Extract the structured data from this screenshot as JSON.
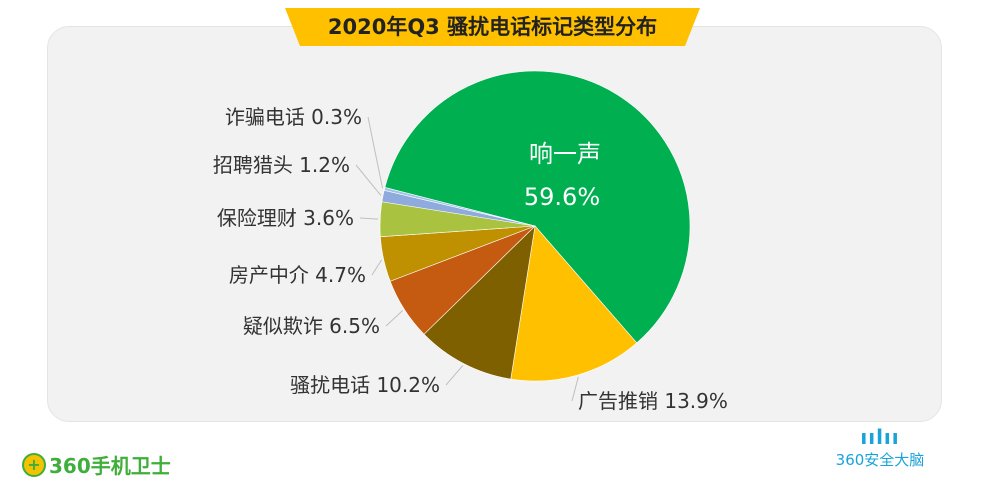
{
  "chart_data": {
    "type": "pie",
    "title": "2020年Q3 骚扰电话标记类型分布",
    "slices": [
      {
        "label": "响一声",
        "value": 59.6,
        "display": "59.6%",
        "color": "#00b050"
      },
      {
        "label": "广告推销",
        "value": 13.9,
        "display": "13.9%",
        "color": "#ffc000"
      },
      {
        "label": "骚扰电话",
        "value": 10.2,
        "display": "10.2%",
        "color": "#7f6000"
      },
      {
        "label": "疑似欺诈",
        "value": 6.5,
        "display": "6.5%",
        "color": "#c55a11"
      },
      {
        "label": "房产中介",
        "value": 4.7,
        "display": "4.7%",
        "color": "#bf9000"
      },
      {
        "label": "保险理财",
        "value": 3.6,
        "display": "3.6%",
        "color": "#a9c23f"
      },
      {
        "label": "招聘猎头",
        "value": 1.2,
        "display": "1.2%",
        "color": "#8faadc"
      },
      {
        "label": "诈骗电话",
        "value": 0.3,
        "display": "0.3%",
        "color": "#9dc3e6"
      }
    ]
  },
  "logos": {
    "left": "360手机卫士",
    "right": "360安全大脑",
    "right_mark": "ıılıı"
  },
  "colors": {
    "banner": "#ffc000",
    "panel": "#f2f2f2"
  }
}
